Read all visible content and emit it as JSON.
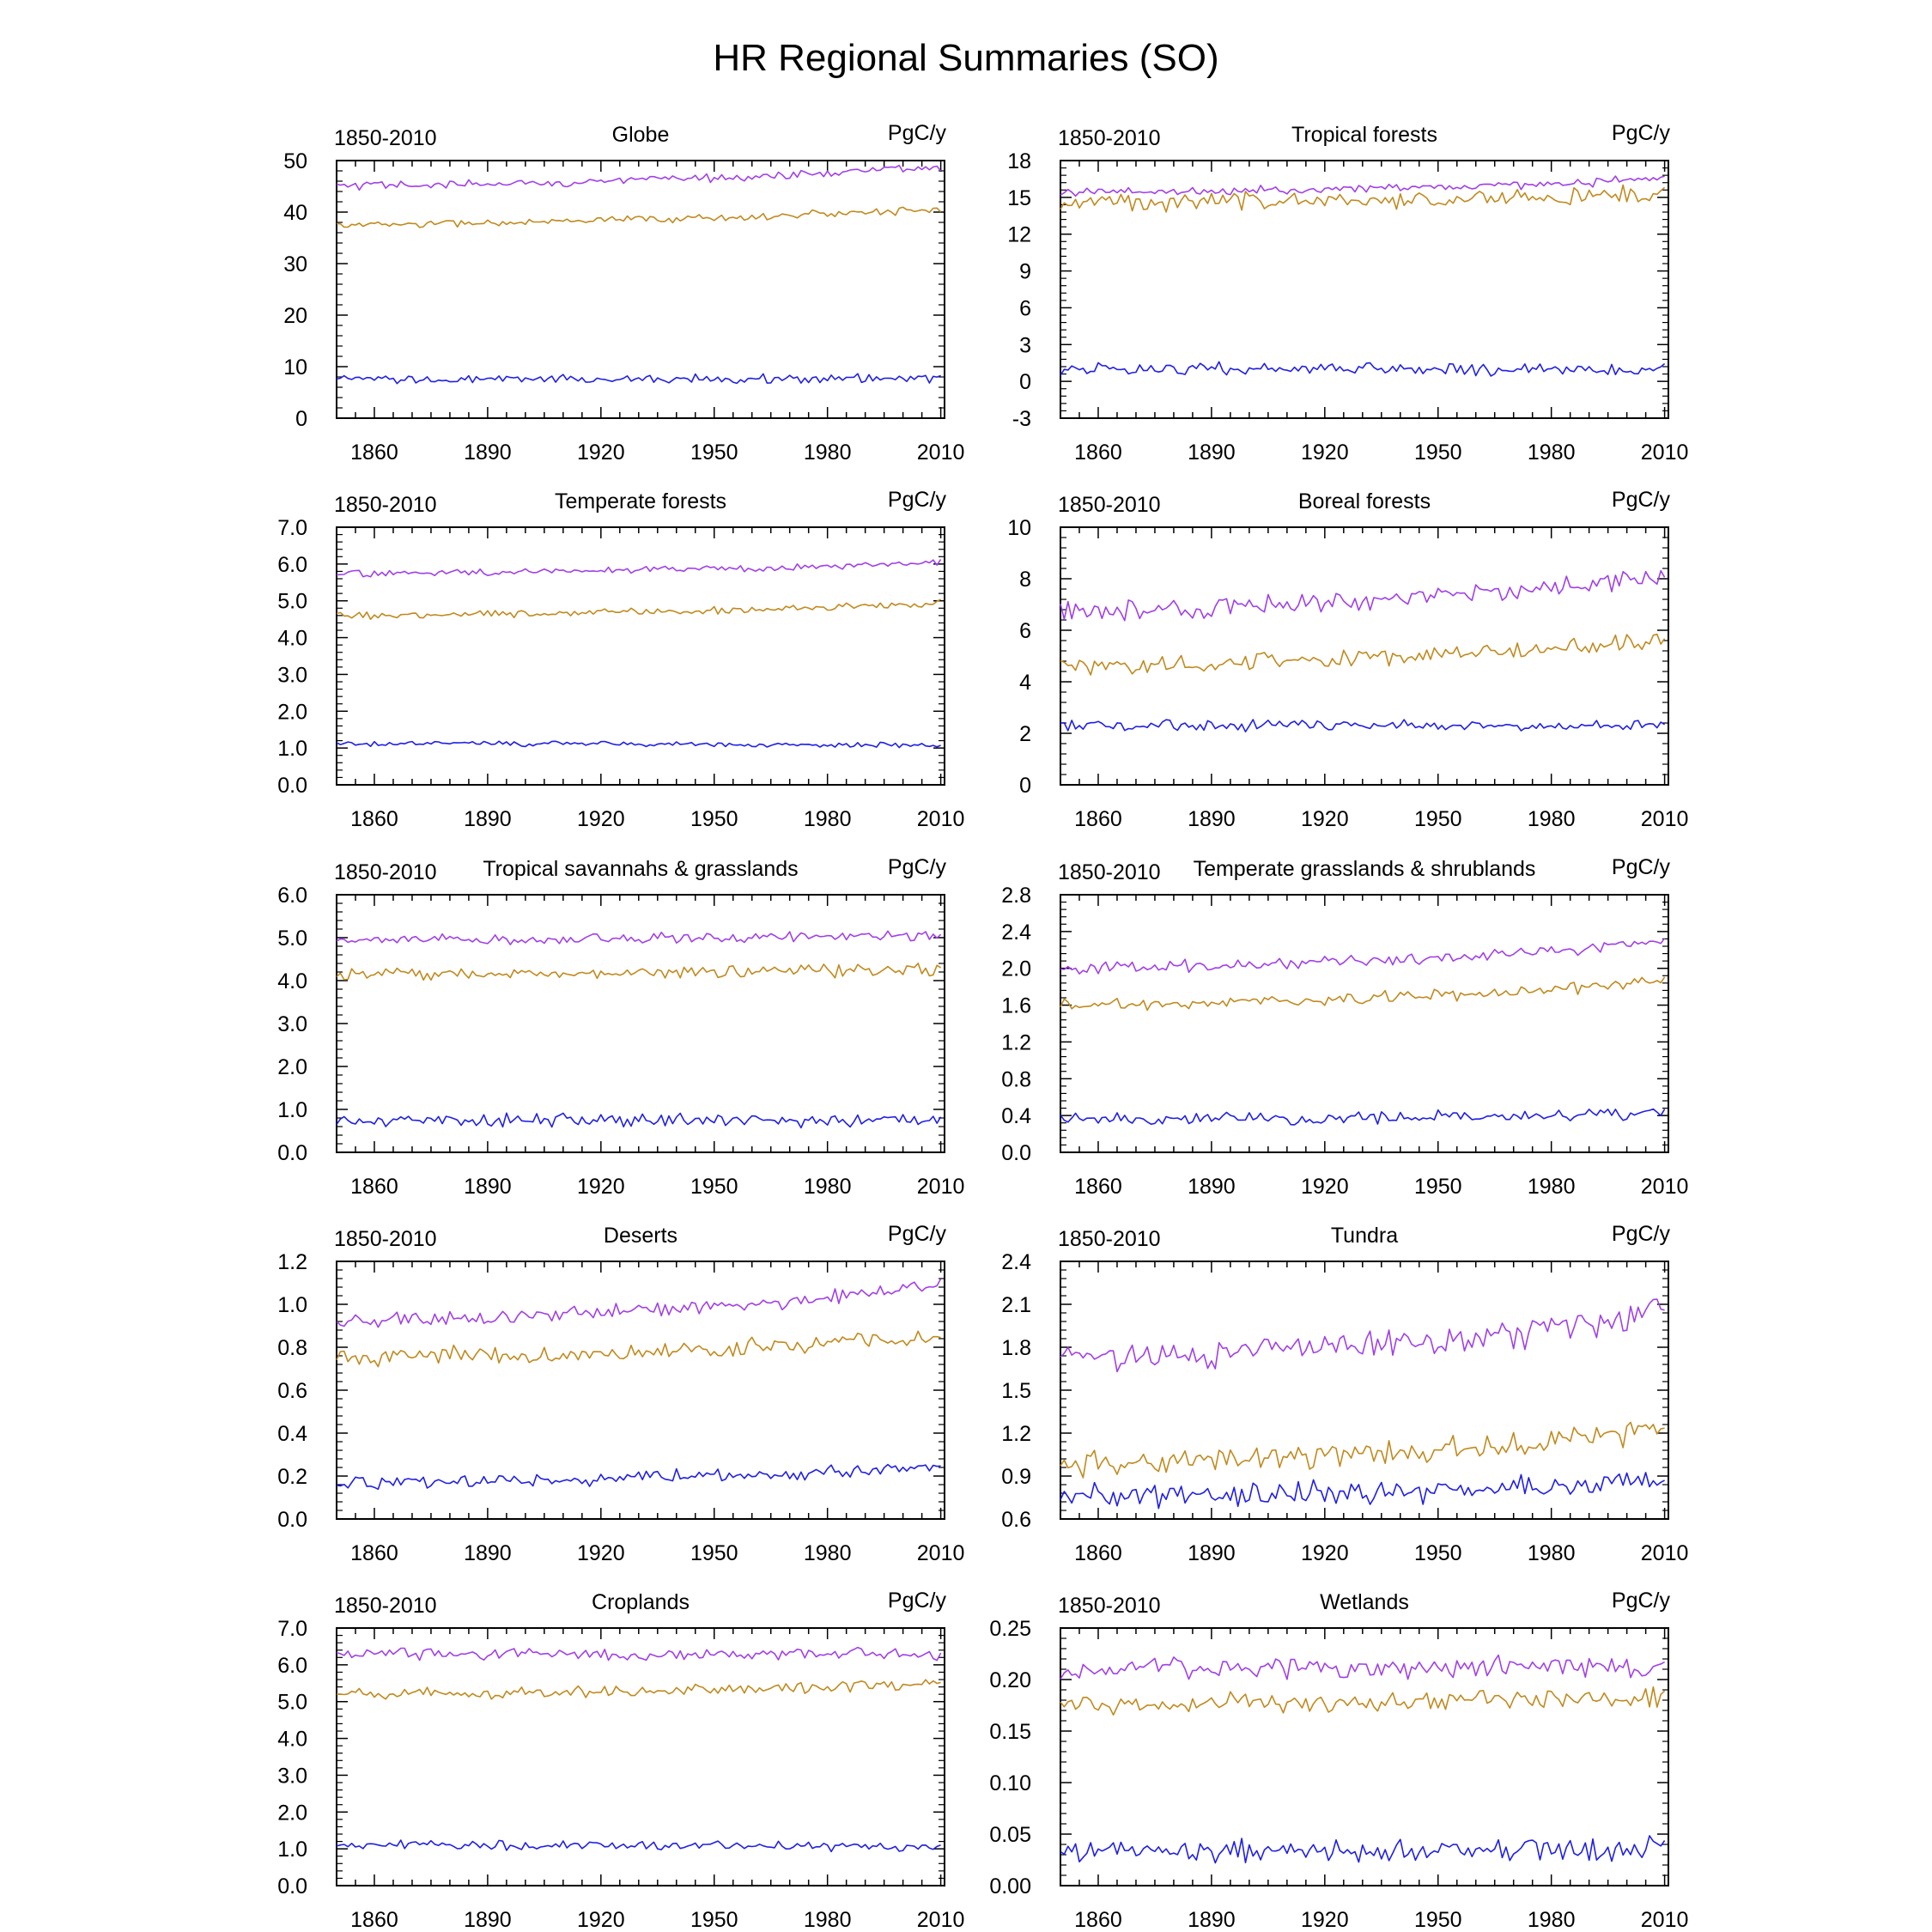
{
  "figure": {
    "title": "HR Regional Summaries (SO)"
  },
  "colors": {
    "purple": "#a040e8",
    "gold": "#c08a1e",
    "blue": "#1f1fe6",
    "frame": "#000000"
  },
  "chart_data": [
    {
      "type": "line",
      "title": "Globe",
      "left_label": "1850-2010",
      "right_label": "PgC/y",
      "xlim": [
        1850,
        2011
      ],
      "x_ticks": [
        1860,
        1890,
        1920,
        1950,
        1980,
        2010
      ],
      "ylim": [
        0,
        50
      ],
      "y_ticks": [
        "0",
        "10",
        "20",
        "30",
        "40",
        "50"
      ],
      "series": [
        {
          "color": "purple",
          "start": 45.0,
          "end": 48.6,
          "amp": 0.8,
          "tail": 0.6
        },
        {
          "color": "gold",
          "start": 37.5,
          "end": 40.5,
          "amp": 0.7,
          "tail": 0.5
        },
        {
          "color": "blue",
          "start": 7.5,
          "end": 7.8,
          "amp": 0.8,
          "tail": 0.0
        }
      ]
    },
    {
      "type": "line",
      "title": "Tropical forests",
      "left_label": "1850-2010",
      "right_label": "PgC/y",
      "xlim": [
        1850,
        2011
      ],
      "x_ticks": [
        1860,
        1890,
        1920,
        1950,
        1980,
        2010
      ],
      "ylim": [
        -3,
        18
      ],
      "y_ticks": [
        "-3",
        "0",
        "3",
        "6",
        "9",
        "12",
        "15",
        "18"
      ],
      "series": [
        {
          "color": "purple",
          "start": 15.4,
          "end": 16.4,
          "amp": 0.35,
          "tail": 0.4
        },
        {
          "color": "gold",
          "start": 14.6,
          "end": 15.2,
          "amp": 0.7,
          "tail": 0.3
        },
        {
          "color": "blue",
          "start": 1.0,
          "end": 1.0,
          "amp": 0.5,
          "tail": 0.0
        }
      ]
    },
    {
      "type": "line",
      "title": "Temperate forests",
      "left_label": "1850-2010",
      "right_label": "PgC/y",
      "xlim": [
        1850,
        2011
      ],
      "x_ticks": [
        1860,
        1890,
        1920,
        1950,
        1980,
        2010
      ],
      "ylim": [
        0,
        7
      ],
      "y_ticks": [
        "0.0",
        "1.0",
        "2.0",
        "3.0",
        "4.0",
        "5.0",
        "6.0",
        "7.0"
      ],
      "series": [
        {
          "color": "purple",
          "start": 5.75,
          "end": 6.0,
          "amp": 0.09,
          "tail": 0.15
        },
        {
          "color": "gold",
          "start": 4.6,
          "end": 4.9,
          "amp": 0.09,
          "tail": 0.15
        },
        {
          "color": "blue",
          "start": 1.12,
          "end": 1.08,
          "amp": 0.06,
          "tail": 0.0
        }
      ]
    },
    {
      "type": "line",
      "title": "Boreal forests",
      "left_label": "1850-2010",
      "right_label": "PgC/y",
      "xlim": [
        1850,
        2011
      ],
      "x_ticks": [
        1860,
        1890,
        1920,
        1950,
        1980,
        2010
      ],
      "ylim": [
        0,
        10
      ],
      "y_ticks": [
        "0",
        "2",
        "4",
        "6",
        "8",
        "10"
      ],
      "series": [
        {
          "color": "purple",
          "start": 6.7,
          "end": 8.0,
          "amp": 0.35,
          "tail": 0.3
        },
        {
          "color": "gold",
          "start": 4.6,
          "end": 5.6,
          "amp": 0.3,
          "tail": 0.2
        },
        {
          "color": "blue",
          "start": 2.3,
          "end": 2.3,
          "amp": 0.2,
          "tail": 0.0
        }
      ]
    },
    {
      "type": "line",
      "title": "Tropical savannahs & grasslands",
      "left_label": "1850-2010",
      "right_label": "PgC/y",
      "xlim": [
        1850,
        2011
      ],
      "x_ticks": [
        1860,
        1890,
        1920,
        1950,
        1980,
        2010
      ],
      "ylim": [
        0,
        6
      ],
      "y_ticks": [
        "0.0",
        "1.0",
        "2.0",
        "3.0",
        "4.0",
        "5.0",
        "6.0"
      ],
      "series": [
        {
          "color": "purple",
          "start": 4.95,
          "end": 5.05,
          "amp": 0.12,
          "tail": 0.0
        },
        {
          "color": "gold",
          "start": 4.15,
          "end": 4.25,
          "amp": 0.13,
          "tail": 0.0
        },
        {
          "color": "blue",
          "start": 0.75,
          "end": 0.75,
          "amp": 0.15,
          "tail": 0.0
        }
      ]
    },
    {
      "type": "line",
      "title": "Temperate grasslands & shrublands",
      "left_label": "1850-2010",
      "right_label": "PgC/y",
      "xlim": [
        1850,
        2011
      ],
      "x_ticks": [
        1860,
        1890,
        1920,
        1950,
        1980,
        2010
      ],
      "ylim": [
        0,
        2.8
      ],
      "y_ticks": [
        "0.0",
        "0.4",
        "0.8",
        "1.2",
        "1.6",
        "2.0",
        "2.4",
        "2.8"
      ],
      "series": [
        {
          "color": "purple",
          "start": 2.0,
          "end": 2.25,
          "amp": 0.06,
          "tail": 0.15
        },
        {
          "color": "gold",
          "start": 1.6,
          "end": 1.83,
          "amp": 0.06,
          "tail": 0.12
        },
        {
          "color": "blue",
          "start": 0.36,
          "end": 0.42,
          "amp": 0.06,
          "tail": 0.0
        }
      ]
    },
    {
      "type": "line",
      "title": "Deserts",
      "left_label": "1850-2010",
      "right_label": "PgC/y",
      "xlim": [
        1850,
        2011
      ],
      "x_ticks": [
        1860,
        1890,
        1920,
        1950,
        1980,
        2010
      ],
      "ylim": [
        0,
        1.2
      ],
      "y_ticks": [
        "0.0",
        "0.2",
        "0.4",
        "0.6",
        "0.8",
        "1.0",
        "1.2"
      ],
      "series": [
        {
          "color": "purple",
          "start": 0.92,
          "end": 1.07,
          "amp": 0.03,
          "tail": 0.08
        },
        {
          "color": "gold",
          "start": 0.75,
          "end": 0.84,
          "amp": 0.04,
          "tail": 0.06
        },
        {
          "color": "blue",
          "start": 0.17,
          "end": 0.24,
          "amp": 0.03,
          "tail": 0.04
        }
      ]
    },
    {
      "type": "line",
      "title": "Tundra",
      "left_label": "1850-2010",
      "right_label": "PgC/y",
      "xlim": [
        1850,
        2011
      ],
      "x_ticks": [
        1860,
        1890,
        1920,
        1950,
        1980,
        2010
      ],
      "ylim": [
        0.6,
        2.4
      ],
      "y_ticks": [
        "0.6",
        "0.9",
        "1.2",
        "1.5",
        "1.8",
        "2.1",
        "2.4"
      ],
      "series": [
        {
          "color": "purple",
          "start": 1.72,
          "end": 2.0,
          "amp": 0.1,
          "tail": 0.25
        },
        {
          "color": "gold",
          "start": 0.98,
          "end": 1.2,
          "amp": 0.08,
          "tail": 0.12
        },
        {
          "color": "blue",
          "start": 0.76,
          "end": 0.86,
          "amp": 0.08,
          "tail": 0.0
        }
      ]
    },
    {
      "type": "line",
      "title": "Croplands",
      "left_label": "1850-2010",
      "right_label": "PgC/y",
      "xlim": [
        1850,
        2011
      ],
      "x_ticks": [
        1860,
        1890,
        1920,
        1950,
        1980,
        2010
      ],
      "ylim": [
        0,
        7
      ],
      "y_ticks": [
        "0.0",
        "1.0",
        "2.0",
        "3.0",
        "4.0",
        "5.0",
        "6.0",
        "7.0"
      ],
      "series": [
        {
          "color": "purple",
          "start": 6.3,
          "end": 6.3,
          "amp": 0.15,
          "tail": 0.0
        },
        {
          "color": "gold",
          "start": 5.2,
          "end": 5.45,
          "amp": 0.15,
          "tail": 0.1
        },
        {
          "color": "blue",
          "start": 1.1,
          "end": 1.05,
          "amp": 0.12,
          "tail": 0.0
        }
      ]
    },
    {
      "type": "line",
      "title": "Wetlands",
      "left_label": "1850-2010",
      "right_label": "PgC/y",
      "xlim": [
        1850,
        2011
      ],
      "x_ticks": [
        1860,
        1890,
        1920,
        1950,
        1980,
        2010
      ],
      "ylim": [
        0,
        0.28
      ],
      "y_ticks": [
        "0.00",
        "0.05",
        "0.10",
        "0.15",
        "0.20",
        "0.25"
      ],
      "series": [
        {
          "color": "purple",
          "start": 0.235,
          "end": 0.238,
          "amp": 0.011,
          "tail": 0.0
        },
        {
          "color": "gold",
          "start": 0.198,
          "end": 0.205,
          "amp": 0.011,
          "tail": 0.0
        },
        {
          "color": "blue",
          "start": 0.038,
          "end": 0.04,
          "amp": 0.012,
          "tail": 0.0
        }
      ]
    }
  ]
}
